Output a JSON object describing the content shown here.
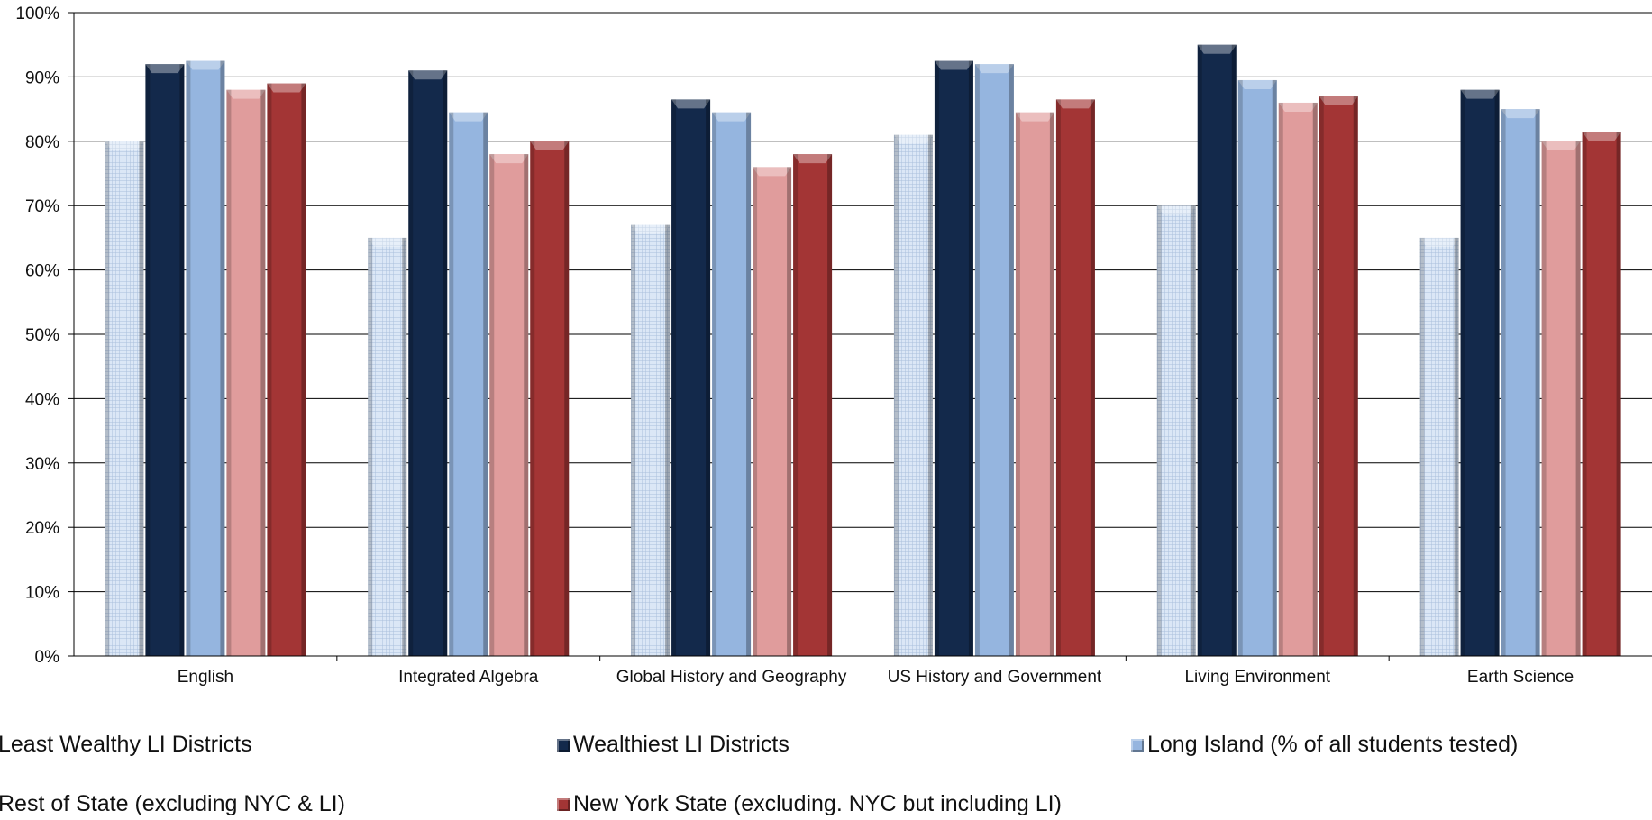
{
  "chart_data": {
    "type": "bar",
    "categories": [
      "English",
      "Integrated Algebra",
      "Global History and Geography",
      "US History and Government",
      "Living Environment",
      "Earth Science"
    ],
    "series": [
      {
        "name": "Least Wealthy LI Districts",
        "color": "#d4e2f4",
        "pattern": "grid",
        "values": [
          80,
          65,
          67,
          81,
          70,
          65
        ]
      },
      {
        "name": "Wealthiest LI Districts",
        "color": "#13294b",
        "values": [
          92,
          91,
          86.5,
          92.5,
          95,
          88
        ]
      },
      {
        "name": "Long Island (% of all students tested)",
        "color": "#95b5df",
        "values": [
          92.5,
          84.5,
          84.5,
          92,
          89.5,
          85
        ]
      },
      {
        "name": "Rest of State (excluding NYC & LI)",
        "color": "#e09c9c",
        "values": [
          88,
          78,
          76,
          84.5,
          86,
          80
        ]
      },
      {
        "name": "New York State (excluding. NYC but including LI)",
        "color": "#a33535",
        "values": [
          89,
          80,
          78,
          86.5,
          87,
          81.5
        ]
      }
    ],
    "yticks": [
      "0%",
      "10%",
      "20%",
      "30%",
      "40%",
      "50%",
      "60%",
      "70%",
      "80%",
      "90%",
      "100%"
    ],
    "ylim": [
      0,
      100
    ],
    "grid": true,
    "legend_position": "bottom"
  }
}
